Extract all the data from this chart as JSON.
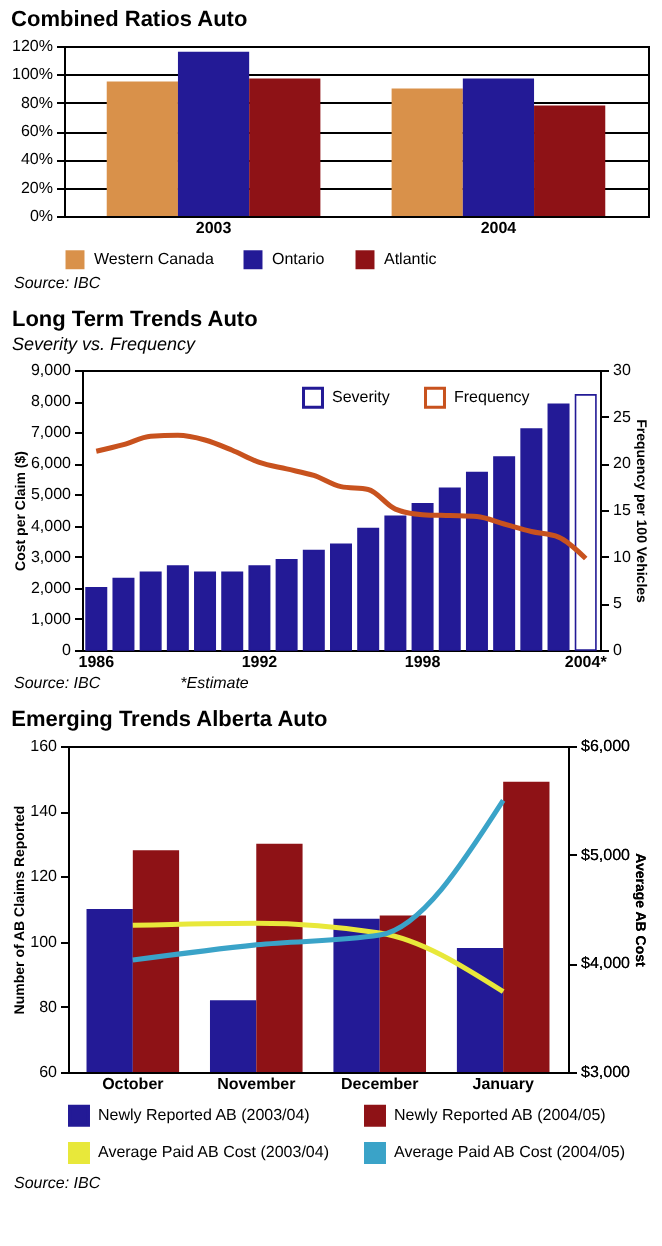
{
  "chart_data": [
    {
      "type": "bar",
      "title": "Combined Ratios Auto",
      "categories": [
        "2003",
        "2004"
      ],
      "series": [
        {
          "name": "Western Canada",
          "color": "#d9914a",
          "values": [
            95,
            90
          ]
        },
        {
          "name": "Ontario",
          "color": "#231a96",
          "values": [
            116,
            97
          ]
        },
        {
          "name": "Atlantic",
          "color": "#8e1216",
          "values": [
            97,
            78
          ]
        }
      ],
      "ylim": [
        0,
        120
      ],
      "yticks": [
        {
          "value": 0,
          "label": "0%"
        },
        {
          "value": 20,
          "label": "20%"
        },
        {
          "value": 40,
          "label": "40%"
        },
        {
          "value": 60,
          "label": "60%"
        },
        {
          "value": 80,
          "label": "80%"
        },
        {
          "value": 100,
          "label": "100%"
        },
        {
          "value": 120,
          "label": "120%"
        }
      ],
      "grid": "y",
      "legend": "bottom",
      "annotations": [
        "Source: IBC"
      ]
    },
    {
      "type": "bar",
      "title": "Long Term Trends Auto",
      "subtitle": "Severity vs. Frequency",
      "ylabel": "Cost per Claim ($)",
      "y2label": "Frequency per 100 Vehicles",
      "categories": [
        "1986",
        null,
        null,
        null,
        null,
        null,
        "1992",
        null,
        null,
        null,
        null,
        null,
        "1998",
        null,
        null,
        null,
        null,
        null,
        "2004*"
      ],
      "series": [
        {
          "name": "Severity",
          "color": "#231a96",
          "colors": [
            "#231a96",
            "#231a96",
            "#231a96",
            "#231a96",
            "#231a96",
            "#231a96",
            "#231a96",
            "#231a96",
            "#231a96",
            "#231a96",
            "#231a96",
            "#231a96",
            "#231a96",
            "#231a96",
            "#231a96",
            "#231a96",
            "#231a96",
            "#231a96",
            "#ffffff"
          ],
          "values": [
            2000,
            2300,
            2500,
            2700,
            2500,
            2500,
            2700,
            2900,
            3200,
            3400,
            3900,
            4300,
            4700,
            5200,
            5700,
            6200,
            7100,
            7900,
            8200
          ]
        },
        {
          "name": "Frequency",
          "type": "line",
          "axis": "y2",
          "color": "#c8521e",
          "values": [
            21.3,
            22.0,
            22.9,
            23.0,
            22.5,
            21.4,
            20.1,
            19.4,
            18.7,
            17.5,
            17.2,
            15.1,
            14.5,
            14.4,
            14.3,
            13.5,
            12.7,
            12.1,
            9.8
          ]
        }
      ],
      "ylim": [
        0,
        9000
      ],
      "yticks": [
        0,
        {
          "value": 1000,
          "label": "1,000"
        },
        {
          "value": 2000,
          "label": "2,000"
        },
        {
          "value": 3000,
          "label": "3,000"
        },
        {
          "value": 4000,
          "label": "4,000"
        },
        {
          "value": 5000,
          "label": "5,000"
        },
        {
          "value": 6000,
          "label": "6,000"
        },
        {
          "value": 7000,
          "label": "7,000"
        },
        {
          "value": 8000,
          "label": "8,000"
        },
        {
          "value": 9000,
          "label": "9,000"
        }
      ],
      "y2lim": [
        0,
        30
      ],
      "y2ticks": [
        0,
        5,
        10,
        15,
        20,
        25,
        30
      ],
      "legend": "top",
      "annotations": [
        "Source: IBC",
        "*Estimate"
      ]
    },
    {
      "type": "bar",
      "title": "Emerging Trends Alberta Auto",
      "ylabel": "Number of AB Claims Reported",
      "y2label": "Average AB Cost",
      "categories": [
        "October",
        "November",
        "December",
        "January"
      ],
      "series": [
        {
          "name": "Newly Reported AB (2003/04)",
          "color": "#231a96",
          "values": [
            110,
            82,
            107,
            98
          ]
        },
        {
          "name": "Newly Reported AB (2004/05)",
          "color": "#8e1216",
          "values": [
            128,
            130,
            108,
            149
          ]
        },
        {
          "name": "Average Paid AB Cost (2003/04)",
          "type": "line",
          "axis": "y2",
          "color": "#e8e83a",
          "values": [
            4350,
            4370,
            4280,
            3740
          ]
        },
        {
          "name": "Average Paid AB Cost (2004/05)",
          "type": "line",
          "axis": "y2",
          "color": "#3aa3c8",
          "values": [
            4030,
            4170,
            4260,
            5500
          ]
        }
      ],
      "ylim": [
        60,
        160
      ],
      "yticks": [
        60,
        80,
        100,
        120,
        140,
        160
      ],
      "y2lim": [
        3000,
        6000
      ],
      "y2ticks": [
        {
          "value": 3000,
          "label": "$3,000"
        },
        {
          "value": 4000,
          "label": "$4,000"
        },
        {
          "value": 5000,
          "label": "$5,000"
        },
        {
          "value": 6000,
          "label": "$6,000"
        }
      ],
      "legend": "bottom",
      "annotations": [
        "Source: IBC"
      ]
    }
  ]
}
